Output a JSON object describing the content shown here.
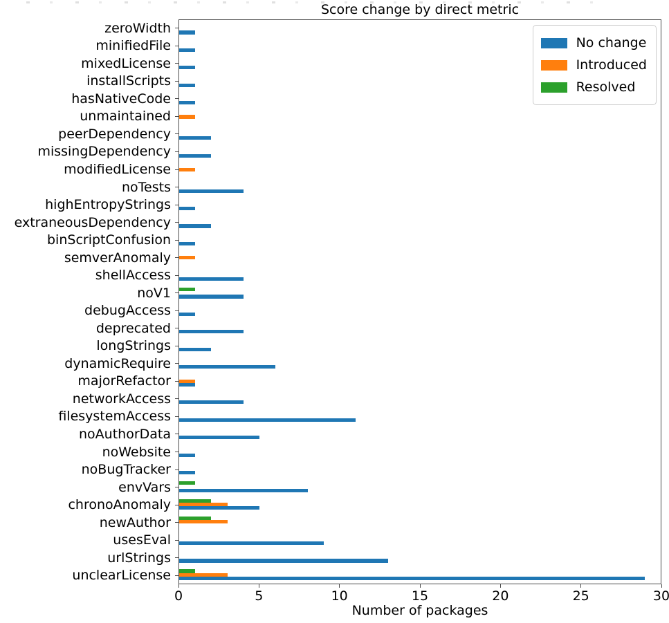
{
  "title": "Score change by direct metric",
  "xlabel": "Number of packages",
  "legend": {
    "items": [
      {
        "label": "No change",
        "color": "#1f77b4"
      },
      {
        "label": "Introduced",
        "color": "#ff7f0e"
      },
      {
        "label": "Resolved",
        "color": "#2ca02c"
      }
    ]
  },
  "chart_data": {
    "type": "bar",
    "orientation": "horizontal",
    "title": "Score change by direct metric",
    "xlabel": "Number of packages",
    "ylabel": "",
    "xlim": [
      0,
      30
    ],
    "x_ticks": [
      0,
      5,
      10,
      15,
      20,
      25,
      30
    ],
    "grid": false,
    "legend_position": "upper right",
    "bar_order_top_to_bottom": [
      "Resolved",
      "Introduced",
      "No change"
    ],
    "categories": [
      "zeroWidth",
      "minifiedFile",
      "mixedLicense",
      "installScripts",
      "hasNativeCode",
      "unmaintained",
      "peerDependency",
      "missingDependency",
      "modifiedLicense",
      "noTests",
      "highEntropyStrings",
      "extraneousDependency",
      "binScriptConfusion",
      "semverAnomaly",
      "shellAccess",
      "noV1",
      "debugAccess",
      "deprecated",
      "longStrings",
      "dynamicRequire",
      "majorRefactor",
      "networkAccess",
      "filesystemAccess",
      "noAuthorData",
      "noWebsite",
      "noBugTracker",
      "envVars",
      "chronoAnomaly",
      "newAuthor",
      "usesEval",
      "urlStrings",
      "unclearLicense"
    ],
    "series": [
      {
        "name": "No change",
        "color": "#1f77b4",
        "values": [
          1,
          1,
          1,
          1,
          1,
          0,
          2,
          2,
          0,
          4,
          1,
          2,
          1,
          0,
          4,
          4,
          1,
          4,
          2,
          6,
          1,
          4,
          11,
          5,
          1,
          1,
          8,
          5,
          0,
          9,
          13,
          29
        ]
      },
      {
        "name": "Introduced",
        "color": "#ff7f0e",
        "values": [
          0,
          0,
          0,
          0,
          0,
          1,
          0,
          0,
          1,
          0,
          0,
          0,
          0,
          1,
          0,
          0,
          0,
          0,
          0,
          0,
          1,
          0,
          0,
          0,
          0,
          0,
          0,
          3,
          3,
          0,
          0,
          3
        ]
      },
      {
        "name": "Resolved",
        "color": "#2ca02c",
        "values": [
          0,
          0,
          0,
          0,
          0,
          0,
          0,
          0,
          0,
          0,
          0,
          0,
          0,
          0,
          0,
          1,
          0,
          0,
          0,
          0,
          0,
          0,
          0,
          0,
          0,
          0,
          1,
          2,
          2,
          0,
          0,
          1
        ]
      }
    ]
  }
}
